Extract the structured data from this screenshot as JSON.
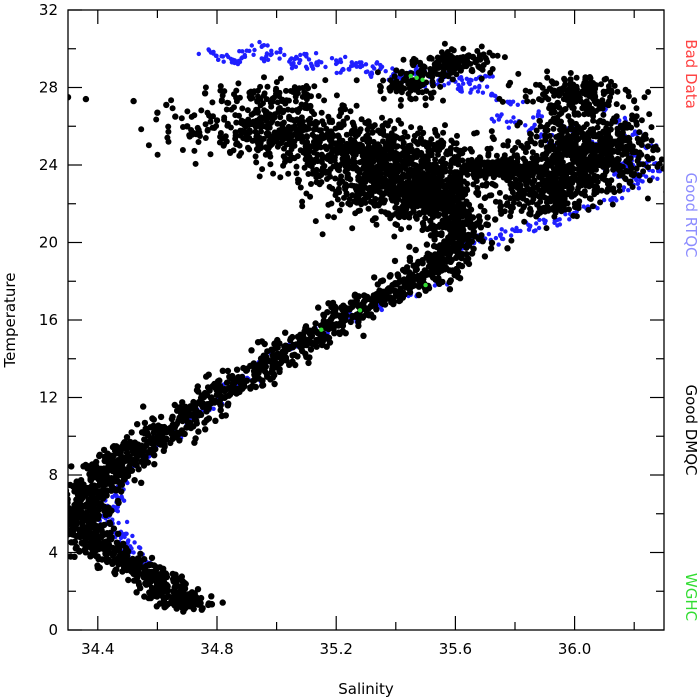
{
  "chart_data": {
    "type": "scatter",
    "xlabel": "Salinity",
    "ylabel": "Temperature",
    "xlim": [
      34.3,
      36.3
    ],
    "ylim": [
      0,
      32
    ],
    "xticks": [
      "34.4",
      "34.8",
      "35.2",
      "35.6",
      "36.0"
    ],
    "yticks": [
      "0",
      "4",
      "8",
      "12",
      "16",
      "20",
      "24",
      "28",
      "32"
    ],
    "grid": false,
    "legend_position": "right-vertical",
    "colors": {
      "black": "#000000",
      "blue": "#1f1fff",
      "green": "#33dd33",
      "red": "#ff4444",
      "lightblue": "#8c8cff"
    },
    "legend": [
      {
        "label": "Bad Data",
        "color": "#ff4444"
      },
      {
        "label": "Good RTQC",
        "color": "#8c8cff"
      },
      {
        "label": "Good DMQC",
        "color": "#000000"
      },
      {
        "label": "WGHC",
        "color": "#33dd33"
      }
    ],
    "series": [
      {
        "label_ref": "Good RTQC",
        "color": "#1f1fff",
        "marker_radius": "small",
        "points": [
          [
            34.78,
            29.8
          ],
          [
            34.82,
            29.6
          ],
          [
            34.86,
            29.4
          ],
          [
            34.9,
            29.9
          ],
          [
            34.95,
            30.1
          ],
          [
            35.0,
            29.8
          ],
          [
            35.05,
            29.5
          ],
          [
            35.1,
            29.6
          ],
          [
            35.15,
            29.3
          ],
          [
            35.2,
            29.4
          ],
          [
            35.25,
            29.1
          ],
          [
            35.3,
            29.2
          ],
          [
            35.35,
            29.0
          ],
          [
            35.4,
            28.8
          ],
          [
            35.45,
            28.6
          ],
          [
            35.5,
            28.7
          ],
          [
            35.55,
            28.5
          ],
          [
            35.6,
            28.3
          ],
          [
            35.65,
            28.4
          ],
          [
            35.7,
            28.6
          ],
          [
            34.85,
            29.3
          ],
          [
            34.95,
            29.5
          ],
          [
            35.05,
            29.2
          ],
          [
            35.12,
            29.1
          ],
          [
            35.22,
            28.9
          ],
          [
            35.32,
            28.7
          ],
          [
            35.42,
            28.5
          ],
          [
            35.52,
            28.2
          ],
          [
            35.62,
            27.9
          ],
          [
            35.72,
            27.6
          ],
          [
            35.75,
            26.5
          ],
          [
            35.8,
            26.2
          ],
          [
            35.85,
            25.8
          ],
          [
            35.9,
            25.5
          ],
          [
            35.95,
            25.0
          ],
          [
            36.0,
            24.6
          ],
          [
            36.05,
            24.2
          ],
          [
            36.1,
            23.8
          ],
          [
            36.15,
            23.5
          ],
          [
            36.2,
            23.9
          ],
          [
            36.25,
            24.2
          ],
          [
            36.28,
            23.8
          ],
          [
            36.22,
            23.2
          ],
          [
            36.18,
            22.7
          ],
          [
            36.12,
            22.2
          ],
          [
            36.05,
            21.8
          ],
          [
            36.0,
            21.5
          ],
          [
            35.95,
            21.2
          ],
          [
            35.9,
            21.0
          ],
          [
            35.85,
            20.8
          ],
          [
            35.8,
            20.6
          ],
          [
            35.75,
            20.4
          ],
          [
            35.7,
            20.2
          ],
          [
            35.65,
            19.9
          ],
          [
            36.1,
            26.8
          ],
          [
            36.15,
            26.3
          ],
          [
            36.2,
            25.6
          ],
          [
            36.25,
            25.0
          ],
          [
            36.2,
            24.5
          ],
          [
            36.1,
            25.2
          ],
          [
            35.55,
            17.9
          ],
          [
            35.45,
            17.3
          ],
          [
            35.35,
            16.7
          ],
          [
            35.25,
            16.1
          ],
          [
            35.15,
            15.4
          ],
          [
            35.05,
            14.6
          ],
          [
            34.95,
            13.6
          ],
          [
            34.85,
            12.5
          ],
          [
            34.75,
            11.3
          ],
          [
            34.65,
            10.1
          ],
          [
            34.55,
            9.0
          ],
          [
            34.5,
            8.3
          ],
          [
            34.48,
            7.5
          ],
          [
            34.47,
            6.8
          ],
          [
            34.46,
            6.2
          ],
          [
            34.45,
            5.5
          ],
          [
            34.48,
            5.0
          ],
          [
            34.5,
            4.5
          ],
          [
            34.52,
            4.0
          ],
          [
            34.55,
            3.5
          ],
          [
            34.46,
            7.1
          ],
          [
            34.47,
            6.5
          ],
          [
            34.44,
            5.9
          ],
          [
            34.49,
            4.8
          ],
          [
            34.51,
            4.2
          ],
          [
            34.6,
            9.6
          ],
          [
            34.7,
            10.7
          ],
          [
            34.8,
            11.9
          ],
          [
            34.9,
            13.0
          ],
          [
            35.0,
            14.1
          ],
          [
            35.4,
            28.4
          ],
          [
            35.48,
            28.9
          ],
          [
            35.58,
            28.6
          ],
          [
            35.68,
            28.0
          ],
          [
            35.78,
            27.2
          ],
          [
            35.88,
            26.6
          ],
          [
            35.98,
            25.9
          ],
          [
            36.08,
            24.9
          ],
          [
            36.16,
            24.0
          ],
          [
            36.24,
            23.4
          ]
        ]
      },
      {
        "label_ref": "WGHC",
        "color": "#33dd33",
        "marker_radius": "small",
        "points": [
          [
            35.45,
            28.6
          ],
          [
            35.47,
            28.5
          ],
          [
            35.49,
            28.4
          ],
          [
            35.28,
            16.5
          ],
          [
            35.15,
            15.5
          ],
          [
            35.5,
            17.8
          ]
        ]
      },
      {
        "label_ref": "Good DMQC",
        "color": "#000000",
        "marker_radius": "large",
        "spine": [
          [
            34.71,
            1.2
          ],
          [
            34.68,
            1.6
          ],
          [
            34.63,
            2.2
          ],
          [
            34.57,
            2.8
          ],
          [
            34.5,
            3.4
          ],
          [
            34.43,
            4.0
          ],
          [
            34.38,
            4.6
          ],
          [
            34.35,
            5.2
          ],
          [
            34.34,
            5.8
          ],
          [
            34.35,
            6.4
          ],
          [
            34.37,
            7.0
          ],
          [
            34.4,
            7.6
          ],
          [
            34.44,
            8.2
          ],
          [
            34.49,
            8.8
          ],
          [
            34.55,
            9.5
          ],
          [
            34.62,
            10.2
          ],
          [
            34.7,
            11.0
          ],
          [
            34.79,
            11.9
          ],
          [
            34.88,
            12.8
          ],
          [
            34.97,
            13.7
          ],
          [
            35.06,
            14.6
          ],
          [
            35.15,
            15.5
          ],
          [
            35.24,
            16.4
          ],
          [
            35.33,
            17.1
          ],
          [
            35.42,
            17.7
          ],
          [
            35.5,
            18.3
          ],
          [
            35.56,
            19.0
          ],
          [
            35.6,
            19.8
          ],
          [
            35.61,
            20.6
          ],
          [
            35.59,
            21.4
          ],
          [
            35.55,
            22.0
          ],
          [
            35.5,
            22.5
          ],
          [
            35.45,
            23.0
          ]
        ],
        "spine_spread_salinity": 0.05,
        "clusters": [
          {
            "center": [
              35.45,
              23.0
            ],
            "spread": [
              0.22,
              1.6
            ],
            "count": 700
          },
          {
            "center": [
              35.3,
              24.5
            ],
            "spread": [
              0.25,
              1.4
            ],
            "count": 500
          },
          {
            "center": [
              35.0,
              25.8
            ],
            "spread": [
              0.28,
              1.2
            ],
            "count": 350
          },
          {
            "center": [
              36.05,
              24.6
            ],
            "spread": [
              0.18,
              1.6
            ],
            "count": 650
          },
          {
            "center": [
              35.9,
              22.8
            ],
            "spread": [
              0.14,
              1.2
            ],
            "count": 300
          },
          {
            "center": [
              35.75,
              23.8
            ],
            "spread": [
              0.1,
              0.5
            ],
            "count": 180
          },
          {
            "center": [
              35.6,
              29.3
            ],
            "spread": [
              0.1,
              0.5
            ],
            "count": 140
          },
          {
            "center": [
              35.45,
              28.2
            ],
            "spread": [
              0.1,
              0.8
            ],
            "count": 100
          },
          {
            "center": [
              36.0,
              27.6
            ],
            "spread": [
              0.15,
              0.8
            ],
            "count": 200
          },
          {
            "center": [
              34.98,
              27.6
            ],
            "spread": [
              0.15,
              0.6
            ],
            "count": 80
          }
        ],
        "isolated": [
          [
            34.3,
            27.5
          ],
          [
            34.36,
            27.4
          ],
          [
            34.52,
            27.3
          ],
          [
            34.6,
            26.7
          ],
          [
            34.63,
            27.1
          ],
          [
            34.66,
            26.5
          ],
          [
            34.7,
            26.0
          ],
          [
            34.73,
            25.6
          ],
          [
            34.76,
            27.7
          ],
          [
            34.8,
            26.3
          ]
        ]
      }
    ]
  }
}
